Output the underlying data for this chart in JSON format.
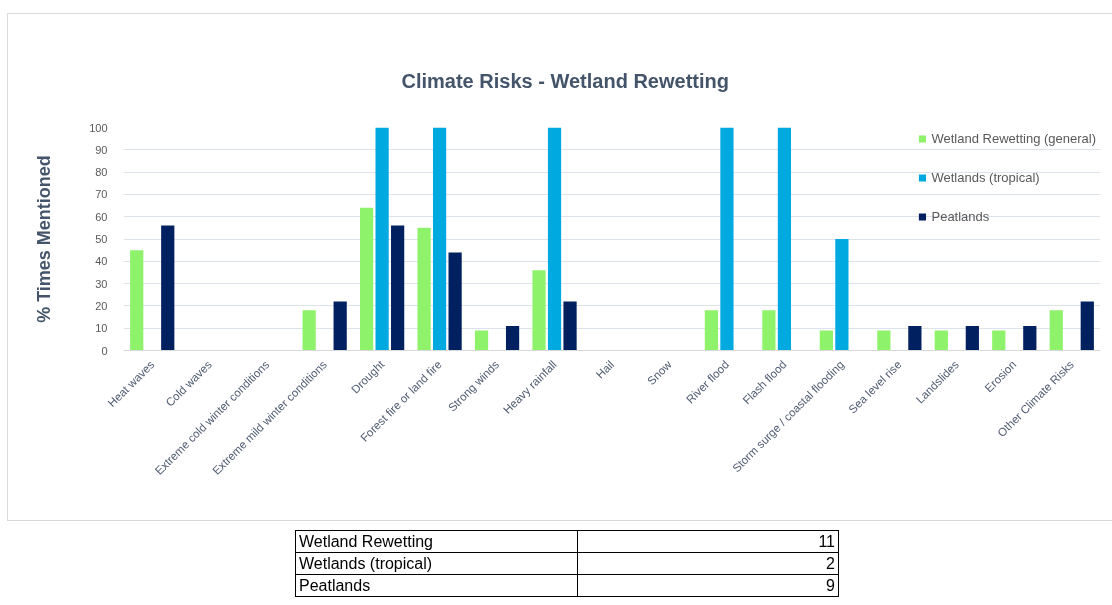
{
  "chart_data": {
    "type": "bar",
    "title": "Climate Risks - Wetland Rewetting",
    "ylabel": "% Times Mentioned",
    "categories": [
      "Heat waves",
      "Cold waves",
      "Extreme cold winter conditions",
      "Extreme mild winter conditions",
      "Drought",
      "Forest fire or land fire",
      "Strong winds",
      "Heavy rainfall",
      "Hail",
      "Snow",
      "River flood",
      "Flash flood",
      "Storm surge / coastal flooding",
      "Sea level rise",
      "Landslides",
      "Erosion",
      "Other Climate Risks"
    ],
    "series": [
      {
        "name": "Wetland Rewetting (general)",
        "color": "#8ef26a",
        "values": [
          45,
          0,
          0,
          18,
          64,
          55,
          9,
          36,
          0,
          0,
          18,
          18,
          9,
          9,
          9,
          9,
          18
        ]
      },
      {
        "name": "Wetlands (tropical)",
        "color": "#00a9e0",
        "values": [
          0,
          0,
          0,
          0,
          100,
          100,
          0,
          100,
          0,
          0,
          100,
          100,
          50,
          0,
          0,
          0,
          0
        ]
      },
      {
        "name": "Peatlands",
        "color": "#002060",
        "values": [
          56,
          0,
          0,
          22,
          56,
          44,
          11,
          22,
          0,
          0,
          0,
          0,
          0,
          11,
          11,
          11,
          22
        ]
      }
    ],
    "ylim": [
      0,
      100
    ],
    "yticks": [
      0,
      10,
      20,
      30,
      40,
      50,
      60,
      70,
      80,
      90,
      100
    ],
    "grid": "y",
    "legend": "top right",
    "annotations": [
      "Wetland Rewetting",
      "11",
      "Wetlands (tropical)",
      "2",
      "Peatlands",
      "9"
    ]
  }
}
